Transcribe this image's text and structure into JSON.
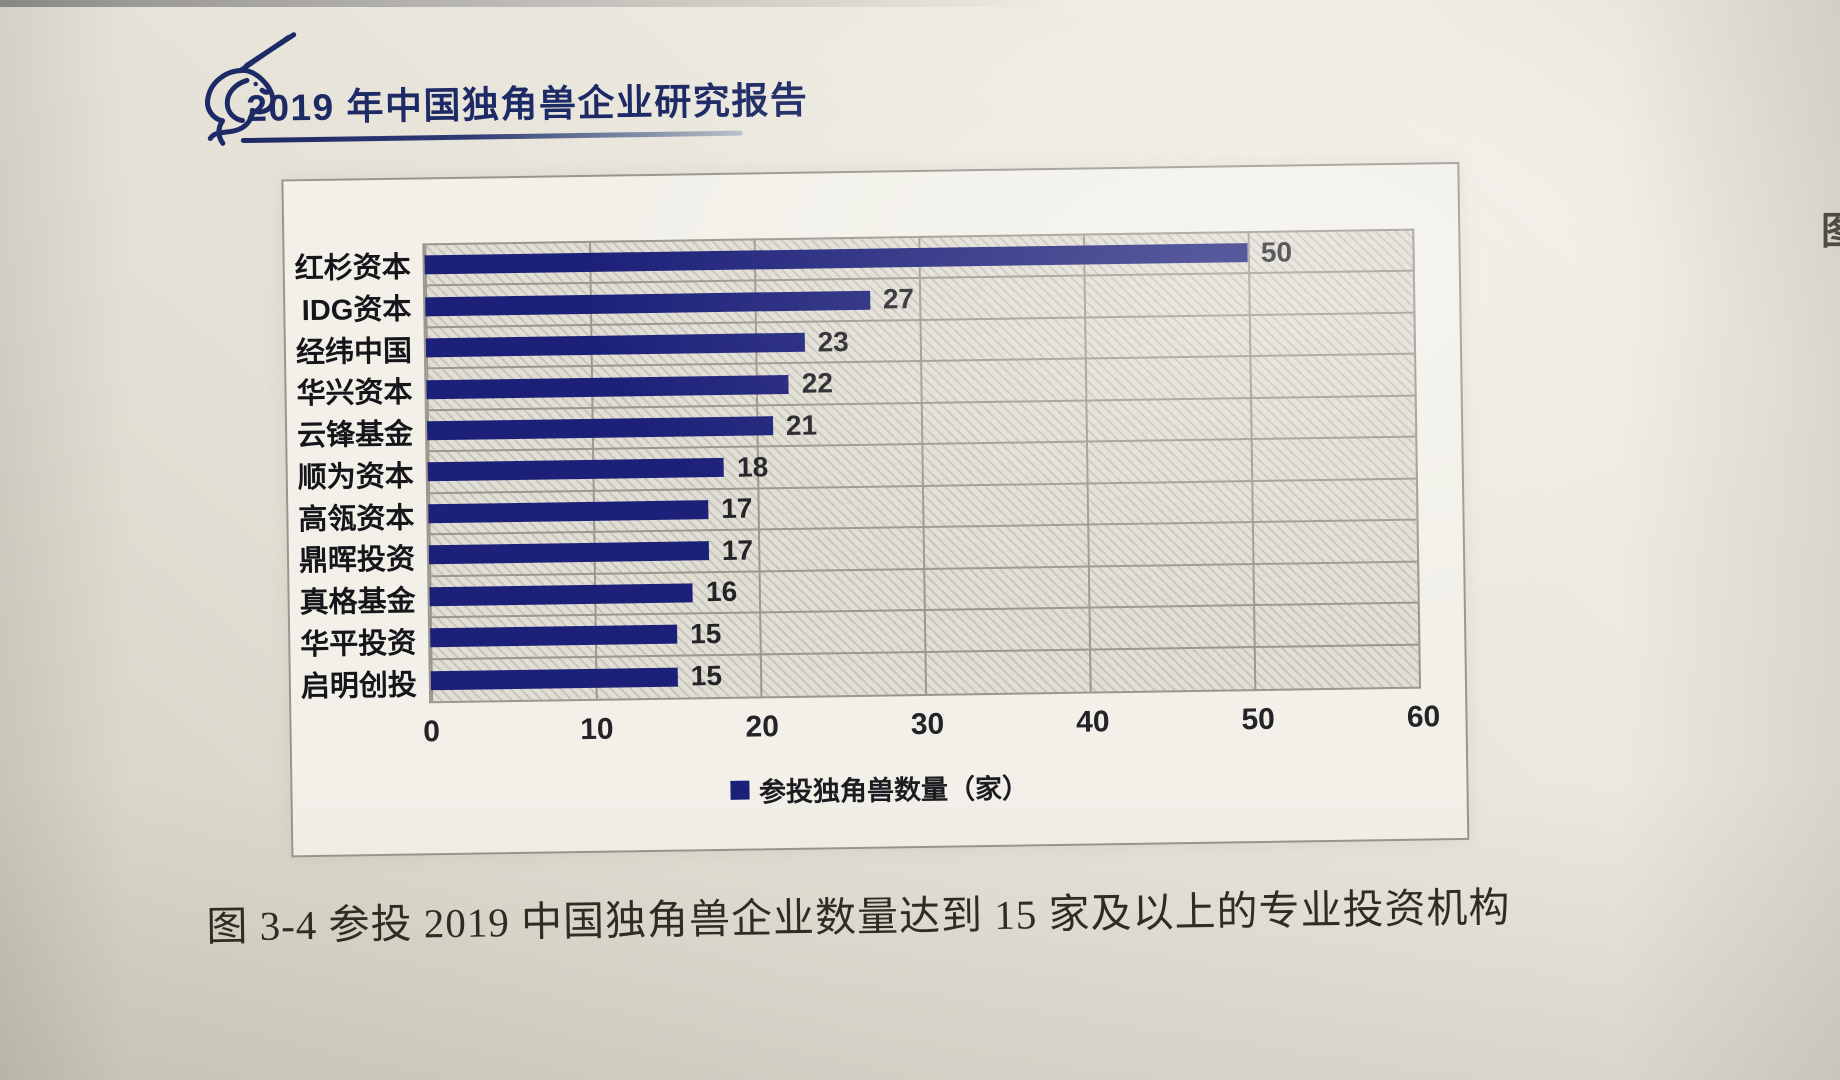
{
  "header": {
    "logo": "unicorn-line-art",
    "title": "2019 年中国独角兽企业研究报告"
  },
  "chart_data": {
    "type": "bar",
    "orientation": "horizontal",
    "title": "",
    "categories": [
      "红杉资本",
      "IDG资本",
      "经纬中国",
      "华兴资本",
      "云锋基金",
      "顺为资本",
      "高瓴资本",
      "鼎晖投资",
      "真格基金",
      "华平投资",
      "启明创投"
    ],
    "values": [
      50,
      27,
      23,
      22,
      21,
      18,
      17,
      17,
      16,
      15,
      15
    ],
    "xlim": [
      0,
      60
    ],
    "xticks": [
      "0",
      "10",
      "20",
      "30",
      "40",
      "50",
      "60"
    ],
    "legend": {
      "label": "参投独角兽数量（家）",
      "position": "bottom"
    },
    "grid": true,
    "bar_color": "#1c2079",
    "plot_background": "gray-diagonal-hatch"
  },
  "caption": "图 3-4 参投 2019 中国独角兽企业数量达到 15 家及以上的专业投资机构",
  "page_edge_fragment": "图",
  "colors": {
    "bar": "#1c2079",
    "header_text": "#1d2a66",
    "gridline": "#9b978e",
    "paper": "#e8e5db"
  }
}
